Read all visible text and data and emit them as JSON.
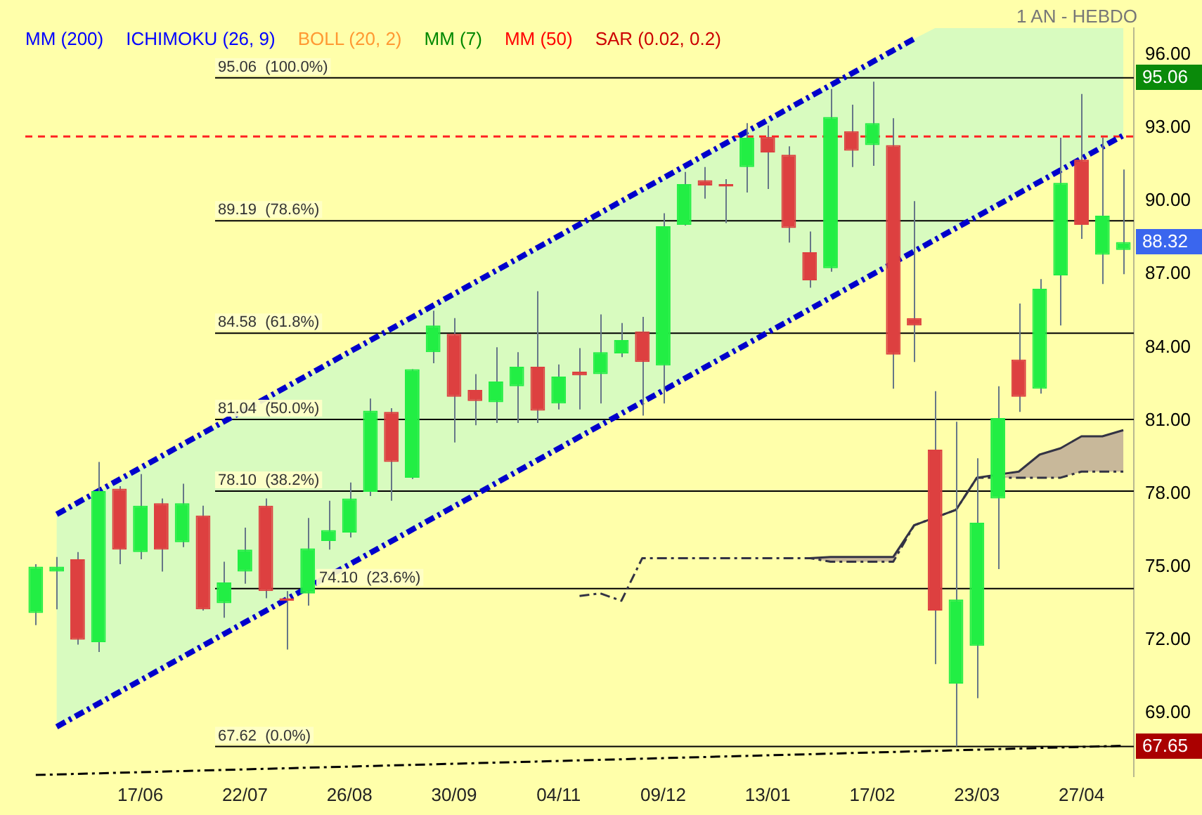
{
  "chart_data": {
    "type": "candlestick",
    "categories": [
      null,
      null,
      null,
      null,
      null,
      "17/06",
      null,
      null,
      null,
      null,
      "22/07",
      null,
      null,
      null,
      null,
      "26/08",
      null,
      null,
      null,
      null,
      "30/09",
      null,
      null,
      null,
      null,
      "04/11",
      null,
      null,
      null,
      null,
      "09/12",
      null,
      null,
      null,
      null,
      "13/01",
      null,
      null,
      null,
      null,
      "17/02",
      null,
      null,
      null,
      null,
      "23/03",
      null,
      null,
      null,
      null,
      "27/04",
      null,
      null
    ],
    "ohlc": [
      [
        73.1,
        75.1,
        72.6,
        75.0
      ],
      [
        74.8,
        75.4,
        73.25,
        75.0
      ],
      [
        75.3,
        75.6,
        71.8,
        72.0
      ],
      [
        71.9,
        79.3,
        71.5,
        78.1
      ],
      [
        78.2,
        78.3,
        75.1,
        75.7
      ],
      [
        75.6,
        78.8,
        75.3,
        77.5
      ],
      [
        77.6,
        77.8,
        74.8,
        75.7
      ],
      [
        76.0,
        78.4,
        75.8,
        77.6
      ],
      [
        77.1,
        77.5,
        73.2,
        73.25
      ],
      [
        73.5,
        75.2,
        72.9,
        74.35
      ],
      [
        74.8,
        76.6,
        74.3,
        75.7
      ],
      [
        77.5,
        77.8,
        73.7,
        74.0
      ],
      [
        73.7,
        74.0,
        71.6,
        73.6
      ],
      [
        73.9,
        77.0,
        73.4,
        75.75
      ],
      [
        76.05,
        77.7,
        75.7,
        76.5
      ],
      [
        76.4,
        78.45,
        76.2,
        77.8
      ],
      [
        78.07,
        81.9,
        77.9,
        81.4
      ],
      [
        81.35,
        81.5,
        77.7,
        79.3
      ],
      [
        78.65,
        83.1,
        78.6,
        83.1
      ],
      [
        83.8,
        85.5,
        83.35,
        84.9
      ],
      [
        84.55,
        85.2,
        80.1,
        81.97
      ],
      [
        82.25,
        82.9,
        80.8,
        81.8
      ],
      [
        81.75,
        84.0,
        80.9,
        82.6
      ],
      [
        82.4,
        83.8,
        80.9,
        83.2
      ],
      [
        83.2,
        86.3,
        80.9,
        81.4
      ],
      [
        81.7,
        83.3,
        81.45,
        82.8
      ],
      [
        83.0,
        83.97,
        81.45,
        82.85
      ],
      [
        82.9,
        85.35,
        81.7,
        83.8
      ],
      [
        83.75,
        85.0,
        83.6,
        84.3
      ],
      [
        84.65,
        85.25,
        81.2,
        83.4
      ],
      [
        83.25,
        89.5,
        81.7,
        88.97
      ],
      [
        89.03,
        91.2,
        89.0,
        90.7
      ],
      [
        90.86,
        91.4,
        90.1,
        90.64
      ],
      [
        90.7,
        90.9,
        89.1,
        90.6
      ],
      [
        91.4,
        93.2,
        90.35,
        92.6
      ],
      [
        92.64,
        93.1,
        90.5,
        92.0
      ],
      [
        91.9,
        92.25,
        88.3,
        88.9
      ],
      [
        87.9,
        88.75,
        86.45,
        86.75
      ],
      [
        87.25,
        94.6,
        87.1,
        93.45
      ],
      [
        92.87,
        93.96,
        91.4,
        92.07
      ],
      [
        92.3,
        94.9,
        91.45,
        93.2
      ],
      [
        92.3,
        93.4,
        82.3,
        83.7
      ],
      [
        85.2,
        90.0,
        83.4,
        84.9
      ],
      [
        79.8,
        82.2,
        71.0,
        73.2
      ],
      [
        70.2,
        80.95,
        67.62,
        73.65
      ],
      [
        71.75,
        79.45,
        69.6,
        76.8
      ],
      [
        77.8,
        82.4,
        74.9,
        81.1
      ],
      [
        83.5,
        85.8,
        81.35,
        81.97
      ],
      [
        82.3,
        86.8,
        82.1,
        86.4
      ],
      [
        86.95,
        92.6,
        84.9,
        90.75
      ],
      [
        91.7,
        94.4,
        88.45,
        89.03
      ],
      [
        87.8,
        92.6,
        86.6,
        89.4
      ],
      [
        88.0,
        91.3,
        87.0,
        88.32
      ]
    ],
    "colors": [
      "#22ee44",
      "#22ee44",
      "#dd4040",
      "#22ee44",
      "#dd4040",
      "#22ee44",
      "#dd4040",
      "#22ee44",
      "#dd4040",
      "#22ee44",
      "#22ee44",
      "#dd4040",
      "#dd4040",
      "#22ee44",
      "#22ee44",
      "#22ee44",
      "#22ee44",
      "#dd4040",
      "#22ee44",
      "#22ee44",
      "#dd4040",
      "#dd4040",
      "#22ee44",
      "#22ee44",
      "#dd4040",
      "#22ee44",
      "#dd4040",
      "#22ee44",
      "#22ee44",
      "#dd4040",
      "#22ee44",
      "#22ee44",
      "#dd4040",
      "#dd4040",
      "#22ee44",
      "#dd4040",
      "#dd4040",
      "#dd4040",
      "#22ee44",
      "#dd4040",
      "#22ee44",
      "#dd4040",
      "#dd4040",
      "#dd4040",
      "#22ee44",
      "#22ee44",
      "#22ee44",
      "#dd4040",
      "#22ee44",
      "#22ee44",
      "#dd4040",
      "#22ee44",
      "#22ee44"
    ],
    "ylim": [
      66.4,
      97.1
    ],
    "yticks": [
      {
        "value": 69,
        "label": "69.00"
      },
      {
        "value": 72,
        "label": "72.00"
      },
      {
        "value": 75,
        "label": "75.00"
      },
      {
        "value": 78,
        "label": "78.00"
      },
      {
        "value": 81,
        "label": "81.00"
      },
      {
        "value": 84,
        "label": "84.00"
      },
      {
        "value": 87,
        "label": "87.00"
      },
      {
        "value": 90,
        "label": "90.00"
      },
      {
        "value": 93,
        "label": "93.00"
      },
      {
        "value": 96,
        "label": "96.00"
      }
    ],
    "series": [
      {
        "type": "line",
        "color": "#0000cc",
        "line_style": "dashed",
        "values": [
          null,
          77.15,
          null,
          null,
          null,
          null,
          null,
          null,
          null,
          null,
          null,
          null,
          null,
          null,
          null,
          null,
          null,
          null,
          null,
          null,
          null,
          null,
          null,
          null,
          null,
          null,
          null,
          null,
          null,
          null,
          null,
          null,
          null,
          null,
          null,
          null,
          null,
          null,
          null,
          null,
          null,
          null,
          96.66,
          null,
          null,
          null,
          null,
          null,
          null,
          null,
          null,
          null,
          null
        ],
        "upper": [
          null,
          77.15,
          null,
          null,
          null,
          null,
          null,
          null,
          null,
          null,
          null,
          null,
          null,
          null,
          null,
          null,
          null,
          null,
          null,
          null,
          null,
          null,
          null,
          null,
          null,
          null,
          null,
          null,
          null,
          null,
          null,
          null,
          null,
          null,
          null,
          null,
          null,
          null,
          null,
          null,
          null,
          null,
          96.66,
          97.1,
          97.1,
          97.1,
          97.1,
          97.1,
          97.1,
          97.1,
          97.1,
          97.1,
          97.1
        ],
        "lower": [
          null,
          68.43,
          null,
          null,
          null,
          null,
          null,
          null,
          null,
          null,
          null,
          null,
          null,
          null,
          null,
          null,
          null,
          null,
          null,
          null,
          null,
          null,
          null,
          null,
          null,
          null,
          null,
          null,
          null,
          null,
          null,
          null,
          null,
          null,
          null,
          null,
          null,
          null,
          null,
          null,
          null,
          null,
          87.9,
          88.4,
          88.9,
          89.3,
          89.8,
          90.3,
          90.8,
          91.2,
          91.7,
          92.2,
          92.7
        ]
      },
      {
        "type": "line",
        "color": "#0000cc",
        "line_style": "dashed",
        "values": [
          null,
          68.43,
          null,
          null,
          null,
          null,
          null,
          null,
          null,
          null,
          null,
          null,
          null,
          null,
          null,
          null,
          null,
          null,
          null,
          null,
          null,
          null,
          null,
          null,
          null,
          null,
          null,
          null,
          null,
          null,
          null,
          null,
          null,
          null,
          null,
          null,
          null,
          null,
          null,
          null,
          null,
          null,
          null,
          null,
          null,
          null,
          null,
          null,
          null,
          null,
          null,
          null,
          92.7
        ]
      },
      {
        "type": "line",
        "color": "#000000",
        "line_style": "dashed",
        "values": [
          66.45,
          null,
          null,
          null,
          null,
          null,
          null,
          null,
          null,
          null,
          null,
          null,
          null,
          null,
          null,
          null,
          null,
          null,
          null,
          null,
          null,
          null,
          null,
          null,
          null,
          null,
          null,
          null,
          null,
          null,
          null,
          null,
          null,
          null,
          null,
          null,
          null,
          null,
          null,
          null,
          null,
          null,
          null,
          null,
          null,
          null,
          null,
          null,
          null,
          null,
          null,
          null,
          67.65
        ]
      },
      {
        "type": "line",
        "color": "#333344",
        "line_style": "dashed",
        "values": [
          null,
          null,
          null,
          null,
          null,
          null,
          null,
          null,
          null,
          null,
          null,
          null,
          null,
          null,
          null,
          null,
          null,
          null,
          null,
          null,
          null,
          null,
          null,
          null,
          null,
          null,
          73.8,
          73.9,
          73.6,
          75.35,
          75.35,
          75.35,
          75.35,
          75.35,
          75.35,
          75.35,
          75.35,
          75.35,
          75.2,
          75.2,
          75.2,
          75.2,
          76.7,
          null,
          77.33,
          78.65,
          null,
          78.65,
          78.65,
          78.65,
          78.9,
          78.9,
          78.9
        ]
      },
      {
        "type": "line",
        "color": "#333344",
        "values": [
          null,
          null,
          null,
          null,
          null,
          null,
          null,
          null,
          null,
          null,
          null,
          null,
          null,
          null,
          null,
          null,
          null,
          null,
          null,
          null,
          null,
          null,
          null,
          null,
          null,
          null,
          null,
          null,
          null,
          null,
          null,
          null,
          null,
          null,
          null,
          null,
          null,
          75.35,
          75.4,
          75.4,
          75.4,
          75.4,
          76.7,
          null,
          77.33,
          78.65,
          null,
          78.9,
          79.6,
          79.86,
          80.35,
          80.35,
          80.6
        ],
        "upper": [
          null,
          null,
          null,
          null,
          null,
          null,
          null,
          null,
          null,
          null,
          null,
          null,
          null,
          null,
          null,
          null,
          null,
          null,
          null,
          null,
          null,
          null,
          null,
          null,
          null,
          null,
          null,
          null,
          null,
          null,
          null,
          null,
          null,
          null,
          null,
          null,
          null,
          75.35,
          75.4,
          75.4,
          75.4,
          75.4,
          76.7,
          76.7,
          77.33,
          78.65,
          78.65,
          78.9,
          79.6,
          79.86,
          80.35,
          80.35,
          80.6
        ],
        "lower": [
          null,
          null,
          null,
          null,
          null,
          null,
          null,
          null,
          null,
          null,
          null,
          null,
          null,
          null,
          null,
          null,
          null,
          null,
          null,
          null,
          null,
          null,
          null,
          null,
          null,
          null,
          null,
          null,
          null,
          null,
          null,
          null,
          null,
          null,
          null,
          null,
          null,
          75.35,
          75.2,
          75.2,
          75.2,
          75.2,
          76.7,
          76.7,
          77.33,
          78.65,
          78.65,
          78.65,
          78.65,
          78.65,
          78.9,
          78.9,
          78.9
        ]
      }
    ],
    "ref_lines": [
      {
        "axis": "y",
        "value": 95.06,
        "label": "95.06  (100.0%)",
        "color": "#000000"
      },
      {
        "axis": "y",
        "value": 89.19,
        "label": "89.19  (78.6%)",
        "color": "#000000"
      },
      {
        "axis": "y",
        "value": 84.58,
        "label": "84.58  (61.8%)",
        "color": "#000000"
      },
      {
        "axis": "y",
        "value": 81.04,
        "label": "81.04  (50.0%)",
        "color": "#000000"
      },
      {
        "axis": "y",
        "value": 78.1,
        "label": "78.10  (38.2%)",
        "color": "#000000"
      },
      {
        "axis": "y",
        "value": 74.1,
        "label": "74.10  (23.6%)",
        "color": "#000000"
      },
      {
        "axis": "y",
        "value": 67.62,
        "label": "67.62  (0.0%)",
        "color": "#000000"
      },
      {
        "axis": "y",
        "value": 92.65,
        "color": "#ff2222",
        "line_style": "dashed"
      }
    ],
    "annotations": [
      "1 AN - HEBDO",
      "MM (200)",
      "ICHIMOKU (26, 9)",
      "BOLL (20, 2)",
      "MM (7)",
      "MM (50)",
      "SAR (0.02, 0.2)",
      "95.06",
      "88.32",
      "67.65"
    ],
    "grid": false
  }
}
